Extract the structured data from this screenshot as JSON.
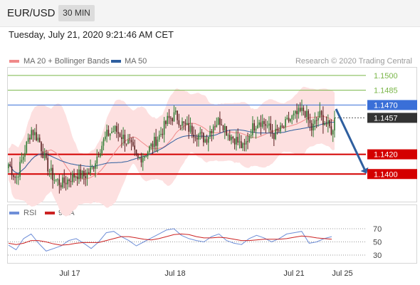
{
  "header": {
    "symbol": "EUR/USD",
    "timeframe": "30 MIN"
  },
  "timestamp": "Tuesday, July 21, 2020 9:21:46 AM CET",
  "credit": "Research © 2020 Trading Central",
  "legend": {
    "ma20": "MA 20 + Bollinger Bands",
    "ma50": "MA 50",
    "rsi": "RSI",
    "rsi_ma": "9MA"
  },
  "colors": {
    "ma20": "#f08a8a",
    "ma50": "#2f5f9f",
    "band": "#fde0e0",
    "up": "#2e7d32",
    "down": "#5a1f1f",
    "support": "#d40000",
    "resistance_blue": "#3a6fd8",
    "resistance_green": "#7ab648",
    "last_price_bg": "#333333",
    "arrow": "#2f5f9f",
    "rsi_line": "#6f8fd8",
    "rsi_ma_line": "#cc2222"
  },
  "chart_data": [
    {
      "type": "candlestick",
      "title": "EUR/USD 30 MIN",
      "x_labels": [
        "Jul 17",
        "Jul 18",
        "Jul 21",
        "Jul 25"
      ],
      "ylim": [
        1.138,
        1.151
      ],
      "levels": [
        {
          "value": 1.15,
          "label": "1.1500",
          "kind": "resistance",
          "color": "#7ab648"
        },
        {
          "value": 1.1485,
          "label": "1.1485",
          "kind": "resistance",
          "color": "#7ab648"
        },
        {
          "value": 1.147,
          "label": "1.1470",
          "kind": "pivot",
          "color": "#3a6fd8"
        },
        {
          "value": 1.1457,
          "label": "1.1457",
          "kind": "last_price",
          "color": "#333333"
        },
        {
          "value": 1.142,
          "label": "1.1420",
          "kind": "support",
          "color": "#d40000"
        },
        {
          "value": 1.14,
          "label": "1.1400",
          "kind": "support",
          "color": "#d40000"
        }
      ],
      "forecast_arrow": {
        "from": 1.1466,
        "to": 1.1402,
        "direction": "down"
      },
      "price_path": [
        1.141,
        1.1395,
        1.142,
        1.1445,
        1.1435,
        1.141,
        1.1395,
        1.139,
        1.1395,
        1.14,
        1.1398,
        1.1405,
        1.1425,
        1.144,
        1.1445,
        1.1438,
        1.143,
        1.1415,
        1.142,
        1.143,
        1.144,
        1.1455,
        1.146,
        1.145,
        1.1445,
        1.144,
        1.1435,
        1.145,
        1.1455,
        1.144,
        1.1435,
        1.1425,
        1.1445,
        1.1455,
        1.145,
        1.144,
        1.1445,
        1.1455,
        1.146,
        1.1465,
        1.1445,
        1.146,
        1.145,
        1.144
      ]
    },
    {
      "type": "line",
      "title": "RSI",
      "ylim": [
        20,
        80
      ],
      "y_ticks": [
        70,
        50,
        30
      ],
      "series": [
        {
          "name": "RSI",
          "values": [
            45,
            38,
            55,
            62,
            48,
            36,
            40,
            44,
            52,
            55,
            48,
            40,
            50,
            64,
            66,
            58,
            52,
            44,
            50,
            56,
            62,
            68,
            70,
            60,
            55,
            52,
            50,
            58,
            62,
            52,
            48,
            46,
            55,
            60,
            56,
            50,
            55,
            62,
            64,
            66,
            48,
            50,
            55,
            58
          ]
        },
        {
          "name": "9MA",
          "values": [
            48,
            46,
            48,
            52,
            52,
            50,
            47,
            45,
            46,
            48,
            49,
            49,
            49,
            52,
            55,
            58,
            58,
            56,
            54,
            53,
            55,
            58,
            61,
            62,
            61,
            58,
            56,
            56,
            57,
            56,
            54,
            52,
            52,
            53,
            54,
            54,
            54,
            55,
            57,
            59,
            58,
            56,
            55,
            54
          ]
        }
      ]
    }
  ]
}
